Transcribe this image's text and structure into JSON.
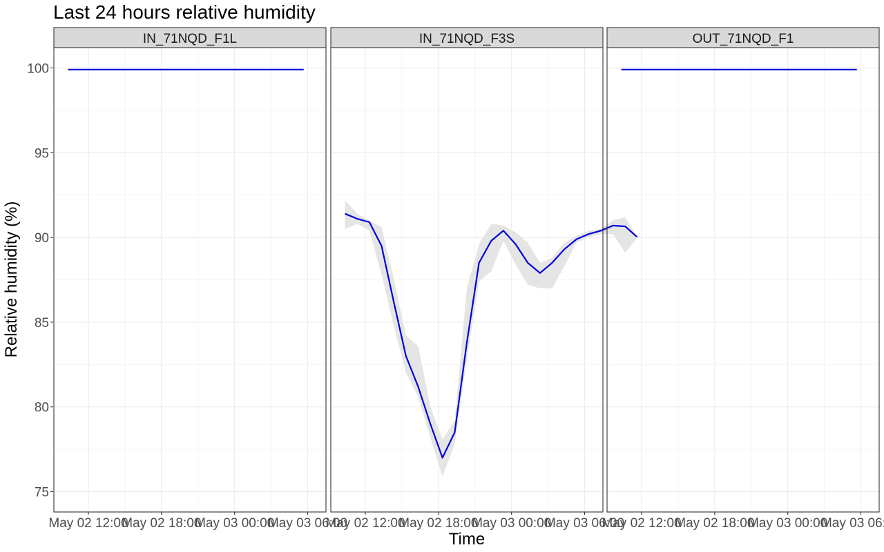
{
  "chart_data": {
    "type": "line",
    "title": "Last 24 hours relative humidity",
    "xlabel": "Time",
    "ylabel": "Relative humidity (%)",
    "ylim": [
      73.8,
      101.2
    ],
    "yticks": [
      75,
      80,
      85,
      90,
      95,
      100
    ],
    "xlim": [
      "2024-05-02 09:10",
      "2024-05-03 07:30"
    ],
    "xticks": [
      {
        "value": "2024-05-02 12:00",
        "label": "May 02 12:00"
      },
      {
        "value": "2024-05-02 18:00",
        "label": "May 02 18:00"
      },
      {
        "value": "2024-05-03 00:00",
        "label": "May 03 00:00"
      },
      {
        "value": "2024-05-03 06:00",
        "label": "May 03 06:00"
      }
    ],
    "grid": true,
    "line_color": "#0000dd",
    "band_color": "#e5e5e5",
    "strip_color": "#d9d9d9",
    "facets": [
      {
        "name": "IN_71NQD_F1L",
        "series": [
          {
            "x": "2024-05-02 10:20",
            "y": 99.9,
            "lo": 99.9,
            "hi": 99.9
          },
          {
            "x": "2024-05-03 05:40",
            "y": 99.9,
            "lo": 99.9,
            "hi": 99.9
          }
        ]
      },
      {
        "name": "IN_71NQD_F3S",
        "series": [
          {
            "x": "2024-05-02 10:20",
            "y": 91.4,
            "lo": 90.5,
            "hi": 92.2
          },
          {
            "x": "2024-05-02 11:20",
            "y": 91.1,
            "lo": 90.8,
            "hi": 91.4
          },
          {
            "x": "2024-05-02 12:20",
            "y": 90.9,
            "lo": 90.4,
            "hi": 91.0
          },
          {
            "x": "2024-05-02 13:20",
            "y": 89.5,
            "lo": 87.8,
            "hi": 90.6
          },
          {
            "x": "2024-05-02 14:20",
            "y": 86.2,
            "lo": 84.8,
            "hi": 87.6
          },
          {
            "x": "2024-05-02 15:20",
            "y": 83.0,
            "lo": 82.0,
            "hi": 84.2
          },
          {
            "x": "2024-05-02 16:20",
            "y": 81.2,
            "lo": 80.6,
            "hi": 83.6
          },
          {
            "x": "2024-05-02 17:20",
            "y": 79.0,
            "lo": 78.2,
            "hi": 80.0
          },
          {
            "x": "2024-05-02 18:20",
            "y": 77.0,
            "lo": 75.9,
            "hi": 78.1
          },
          {
            "x": "2024-05-02 19:20",
            "y": 78.5,
            "lo": 77.8,
            "hi": 79.2
          },
          {
            "x": "2024-05-02 20:20",
            "y": 83.8,
            "lo": 82.8,
            "hi": 87.0
          },
          {
            "x": "2024-05-02 21:20",
            "y": 88.5,
            "lo": 87.4,
            "hi": 89.6
          },
          {
            "x": "2024-05-02 22:20",
            "y": 89.8,
            "lo": 88.0,
            "hi": 90.8
          },
          {
            "x": "2024-05-02 23:20",
            "y": 90.4,
            "lo": 89.8,
            "hi": 90.7
          },
          {
            "x": "2024-05-03 00:20",
            "y": 89.6,
            "lo": 88.4,
            "hi": 90.3
          },
          {
            "x": "2024-05-03 01:20",
            "y": 88.5,
            "lo": 87.2,
            "hi": 89.7
          },
          {
            "x": "2024-05-03 02:20",
            "y": 87.9,
            "lo": 87.0,
            "hi": 88.5
          },
          {
            "x": "2024-05-03 03:20",
            "y": 88.5,
            "lo": 87.0,
            "hi": 88.8
          },
          {
            "x": "2024-05-03 04:20",
            "y": 89.3,
            "lo": 88.3,
            "hi": 89.7
          },
          {
            "x": "2024-05-03 05:20",
            "y": 89.9,
            "lo": 89.7,
            "hi": 90.1
          },
          {
            "x": "2024-05-03 06:20",
            "y": 90.2,
            "lo": 90.0,
            "hi": 90.4
          },
          {
            "x": "2024-05-03 07:20",
            "y": 90.4,
            "lo": 90.2,
            "hi": 90.5
          },
          {
            "x": "2024-05-03 08:20",
            "y": 90.7,
            "lo": 90.2,
            "hi": 91.0
          },
          {
            "x": "2024-05-03 09:20",
            "y": 90.65,
            "lo": 89.1,
            "hi": 91.2
          },
          {
            "x": "2024-05-03 10:20",
            "y": 90.0,
            "lo": 90.0,
            "hi": 90.0
          }
        ]
      },
      {
        "name": "OUT_71NQD_F1",
        "series": [
          {
            "x": "2024-05-02 10:20",
            "y": 99.9,
            "lo": 99.9,
            "hi": 99.9
          },
          {
            "x": "2024-05-03 05:40",
            "y": 99.9,
            "lo": 99.9,
            "hi": 99.9
          }
        ]
      }
    ]
  }
}
